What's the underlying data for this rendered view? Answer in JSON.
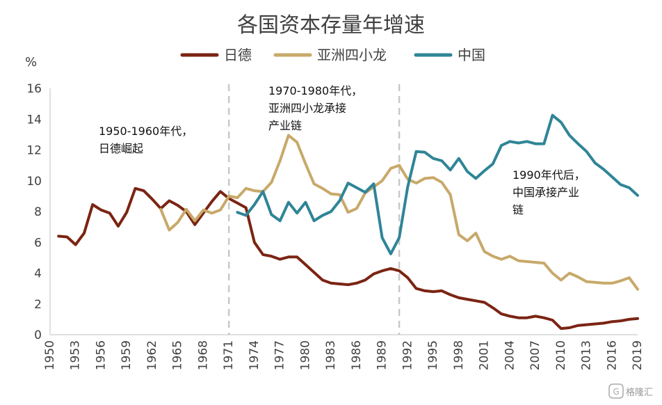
{
  "chart_data": {
    "type": "line",
    "title": "各国资本存量年增速",
    "ylabel": "%",
    "xlabel": "",
    "ylim": [
      0,
      16
    ],
    "yticks": [
      "0",
      "2",
      "4",
      "6",
      "8",
      "10",
      "12",
      "14",
      "16"
    ],
    "xlim": [
      1950,
      2019
    ],
    "xticks": [
      "1950",
      "1953",
      "1956",
      "1959",
      "1962",
      "1965",
      "1968",
      "1971",
      "1974",
      "1977",
      "1980",
      "1983",
      "1986",
      "1989",
      "1992",
      "1995",
      "1998",
      "2001",
      "2004",
      "2007",
      "2010",
      "2013",
      "2016",
      "2019"
    ],
    "grid": false,
    "legend_position": "top-center",
    "reference_lines_x": [
      1971,
      1991
    ],
    "series": [
      {
        "name": "日德",
        "color": "#7B2413",
        "x": [
          1951,
          1952,
          1953,
          1954,
          1955,
          1956,
          1957,
          1958,
          1959,
          1960,
          1961,
          1962,
          1963,
          1964,
          1965,
          1966,
          1967,
          1968,
          1969,
          1970,
          1971,
          1972,
          1973,
          1974,
          1975,
          1976,
          1977,
          1978,
          1979,
          1980,
          1981,
          1982,
          1983,
          1984,
          1985,
          1986,
          1987,
          1988,
          1989,
          1990,
          1991,
          1992,
          1993,
          1994,
          1995,
          1996,
          1997,
          1998,
          1999,
          2000,
          2001,
          2002,
          2003,
          2004,
          2005,
          2006,
          2007,
          2008,
          2009,
          2010,
          2011,
          2012,
          2013,
          2014,
          2015,
          2016,
          2017,
          2018,
          2019
        ],
        "values": [
          6.4,
          6.35,
          5.85,
          6.6,
          8.45,
          8.1,
          7.9,
          7.05,
          7.95,
          9.5,
          9.35,
          8.8,
          8.2,
          8.7,
          8.4,
          8.0,
          7.15,
          7.9,
          8.65,
          9.3,
          8.85,
          8.55,
          8.25,
          6.0,
          5.2,
          5.1,
          4.9,
          5.05,
          5.05,
          4.55,
          4.05,
          3.55,
          3.35,
          3.3,
          3.25,
          3.35,
          3.55,
          3.95,
          4.15,
          4.3,
          4.15,
          3.7,
          3.0,
          2.85,
          2.8,
          2.85,
          2.6,
          2.4,
          2.3,
          2.2,
          2.1,
          1.75,
          1.35,
          1.2,
          1.1,
          1.1,
          1.2,
          1.1,
          0.95,
          0.4,
          0.45,
          0.6,
          0.65,
          0.7,
          0.75,
          0.85,
          0.9,
          1.0,
          1.05
        ]
      },
      {
        "name": "亚洲四小龙",
        "color": "#C8A96A",
        "x": [
          1963,
          1964,
          1965,
          1966,
          1967,
          1968,
          1969,
          1970,
          1971,
          1972,
          1973,
          1974,
          1975,
          1976,
          1977,
          1978,
          1979,
          1980,
          1981,
          1982,
          1983,
          1984,
          1985,
          1986,
          1987,
          1988,
          1989,
          1990,
          1991,
          1992,
          1993,
          1994,
          1995,
          1996,
          1997,
          1998,
          1999,
          2000,
          2001,
          2002,
          2003,
          2004,
          2005,
          2006,
          2007,
          2008,
          2009,
          2010,
          2011,
          2012,
          2013,
          2014,
          2015,
          2016,
          2017,
          2018,
          2019
        ],
        "values": [
          8.15,
          6.8,
          7.3,
          8.15,
          7.4,
          8.1,
          7.9,
          8.1,
          9.0,
          8.9,
          9.5,
          9.35,
          9.3,
          9.9,
          11.3,
          12.95,
          12.5,
          11.1,
          9.8,
          9.5,
          9.15,
          9.1,
          7.95,
          8.2,
          9.2,
          9.6,
          10.0,
          10.8,
          11.0,
          10.1,
          9.85,
          10.15,
          10.2,
          9.9,
          9.1,
          6.5,
          6.1,
          6.6,
          5.4,
          5.1,
          4.9,
          5.1,
          4.8,
          4.75,
          4.7,
          4.65,
          4.0,
          3.55,
          4.0,
          3.75,
          3.45,
          3.4,
          3.35,
          3.35,
          3.5,
          3.7,
          2.95
        ]
      },
      {
        "name": "中国",
        "color": "#2F8597",
        "x": [
          1972,
          1973,
          1974,
          1975,
          1976,
          1977,
          1978,
          1979,
          1980,
          1981,
          1982,
          1983,
          1984,
          1985,
          1986,
          1987,
          1988,
          1989,
          1990,
          1991,
          1992,
          1993,
          1994,
          1995,
          1996,
          1997,
          1998,
          1999,
          2000,
          2001,
          2002,
          2003,
          2004,
          2005,
          2006,
          2007,
          2008,
          2009,
          2010,
          2011,
          2012,
          2013,
          2014,
          2015,
          2016,
          2017,
          2018,
          2019
        ],
        "values": [
          7.95,
          7.75,
          8.45,
          9.3,
          7.8,
          7.4,
          8.6,
          7.9,
          8.6,
          7.4,
          7.75,
          8.0,
          8.7,
          9.85,
          9.55,
          9.25,
          9.8,
          6.3,
          5.25,
          6.3,
          9.6,
          11.9,
          11.85,
          11.45,
          11.3,
          10.7,
          11.45,
          10.6,
          10.15,
          10.65,
          11.1,
          12.3,
          12.55,
          12.45,
          12.55,
          12.4,
          12.4,
          14.25,
          13.8,
          12.95,
          12.4,
          11.9,
          11.15,
          10.75,
          10.25,
          9.75,
          9.55,
          9.05
        ]
      }
    ],
    "annotations": [
      {
        "lines": [
          "1950-1960年代，",
          "日德崛起"
        ]
      },
      {
        "lines": [
          "1970-1980年代，",
          "亚洲四小龙承接",
          "产业链"
        ]
      },
      {
        "lines": [
          "1990年代后，",
          "中国承接产业",
          "链"
        ]
      }
    ]
  },
  "watermark": "格隆汇"
}
